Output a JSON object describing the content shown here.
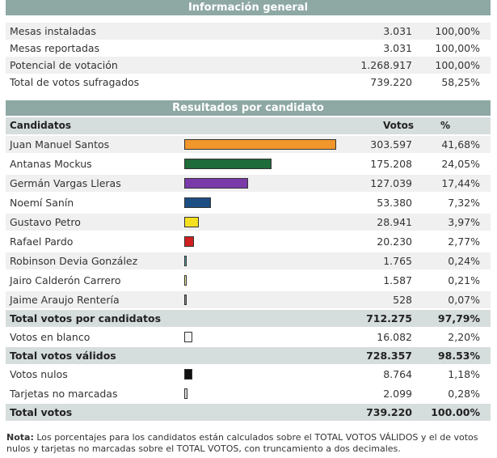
{
  "general": {
    "title": "Información general",
    "rows": [
      {
        "label": "Mesas instaladas",
        "count": "3.031",
        "pct": "100,00%"
      },
      {
        "label": "Mesas reportadas",
        "count": "3.031",
        "pct": "100,00%"
      },
      {
        "label": "Potencial de votación",
        "count": "1.268.917",
        "pct": "100,00%"
      },
      {
        "label": "Total de votos sufragados",
        "count": "739.220",
        "pct": "58,25%"
      }
    ]
  },
  "results": {
    "title": "Resultados por candidato",
    "header": {
      "name": "Candidatos",
      "votes": "Votos",
      "pct": "%"
    },
    "candidates": [
      {
        "name": "Juan Manuel Santos",
        "votes": "303.597",
        "pct": "41,68%",
        "share": 41.68,
        "color": "#f0962a"
      },
      {
        "name": "Antanas Mockus",
        "votes": "175.208",
        "pct": "24,05%",
        "share": 24.05,
        "color": "#1f6b3a"
      },
      {
        "name": "Germán Vargas Lleras",
        "votes": "127.039",
        "pct": "17,44%",
        "share": 17.44,
        "color": "#7a3aa8"
      },
      {
        "name": "Noemí Sanín",
        "votes": "53.380",
        "pct": "7,32%",
        "share": 7.32,
        "color": "#1d4f84"
      },
      {
        "name": "Gustavo Petro",
        "votes": "28.941",
        "pct": "3,97%",
        "share": 3.97,
        "color": "#f5e020"
      },
      {
        "name": "Rafael Pardo",
        "votes": "20.230",
        "pct": "2,77%",
        "share": 2.77,
        "color": "#d02020"
      },
      {
        "name": "Robinson Devia González",
        "votes": "1.765",
        "pct": "0,24%",
        "share": 0.24,
        "color": "#5a9aa0"
      },
      {
        "name": "Jairo Calderón Carrero",
        "votes": "1.587",
        "pct": "0,21%",
        "share": 0.21,
        "color": "#f2ec9a"
      },
      {
        "name": "Jaime Araujo Rentería",
        "votes": "528",
        "pct": "0,07%",
        "share": 0.07,
        "color": "#888888"
      }
    ],
    "total_candidates": {
      "name": "Total votos por candidatos",
      "votes": "712.275",
      "pct": "97,79%"
    },
    "blank": {
      "name": "Votos en blanco",
      "votes": "16.082",
      "pct": "2,20%",
      "share": 2.2,
      "color": "#f4f4f4"
    },
    "total_valid": {
      "name": "Total votos válidos",
      "votes": "728.357",
      "pct": "98.53%"
    },
    "null_votes": {
      "name": "Votos nulos",
      "votes": "8.764",
      "pct": "1,18%",
      "share": 1.18,
      "color": "#111111"
    },
    "unmarked": {
      "name": "Tarjetas no marcadas",
      "votes": "2.099",
      "pct": "0,28%",
      "share": 0.28,
      "color": "#dddddd"
    },
    "total": {
      "name": "Total votos",
      "votes": "739.220",
      "pct": "100.00%"
    }
  },
  "note": {
    "label": "Nota:",
    "text": " Los porcentajes para los candidatos están calculados sobre el TOTAL VOTOS VÁLIDOS y el de votos nulos y tarjetas no marcadas sobre el TOTAL VOTOS, con truncamiento a dos decimales."
  }
}
